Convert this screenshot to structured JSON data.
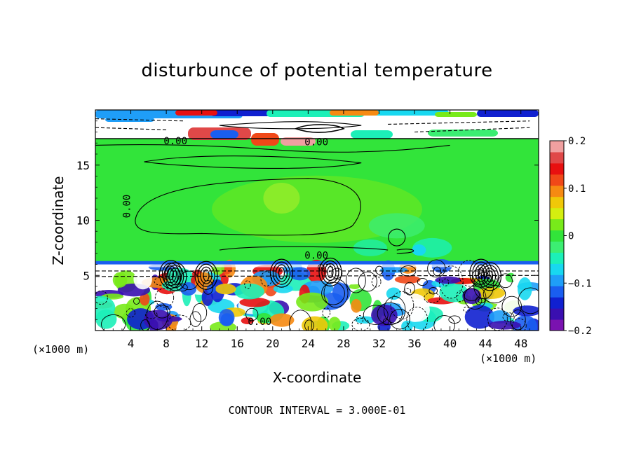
{
  "chart_data": {
    "type": "heatmap",
    "title": "disturbunce of potential temperature",
    "xlabel": "X-coordinate",
    "ylabel": "Z-coordinate",
    "x_unit_label": "(×1000 m)",
    "xlim": [
      0,
      50
    ],
    "ylim": [
      0,
      20
    ],
    "x_ticks": [
      4,
      8,
      12,
      16,
      20,
      24,
      28,
      32,
      36,
      40,
      44,
      48
    ],
    "y_ticks": [
      5,
      10,
      15
    ],
    "colorbar": {
      "range": [
        -0.2,
        0.2
      ],
      "tick_values": [
        0.2,
        0.1,
        0,
        -0.1,
        -0.2
      ],
      "tick_labels": [
        "0.2",
        "0.1",
        "0",
        "−0.1",
        "−0.2"
      ],
      "colors": [
        "#7a12b0",
        "#3a0fb0",
        "#1020d0",
        "#1a5ef0",
        "#1f9ef8",
        "#18d8f0",
        "#1cf0b8",
        "#3cee72",
        "#32e43a",
        "#78ea1a",
        "#d4ee10",
        "#f0c808",
        "#f68a12",
        "#f04818",
        "#e81010",
        "#e04848",
        "#f0a0a0"
      ]
    },
    "contour_labels": [
      "0.00",
      "0.00",
      "0.00",
      "0.00",
      "0.00"
    ],
    "footer": "CONTOUR INTERVAL = 3.000E-01"
  }
}
